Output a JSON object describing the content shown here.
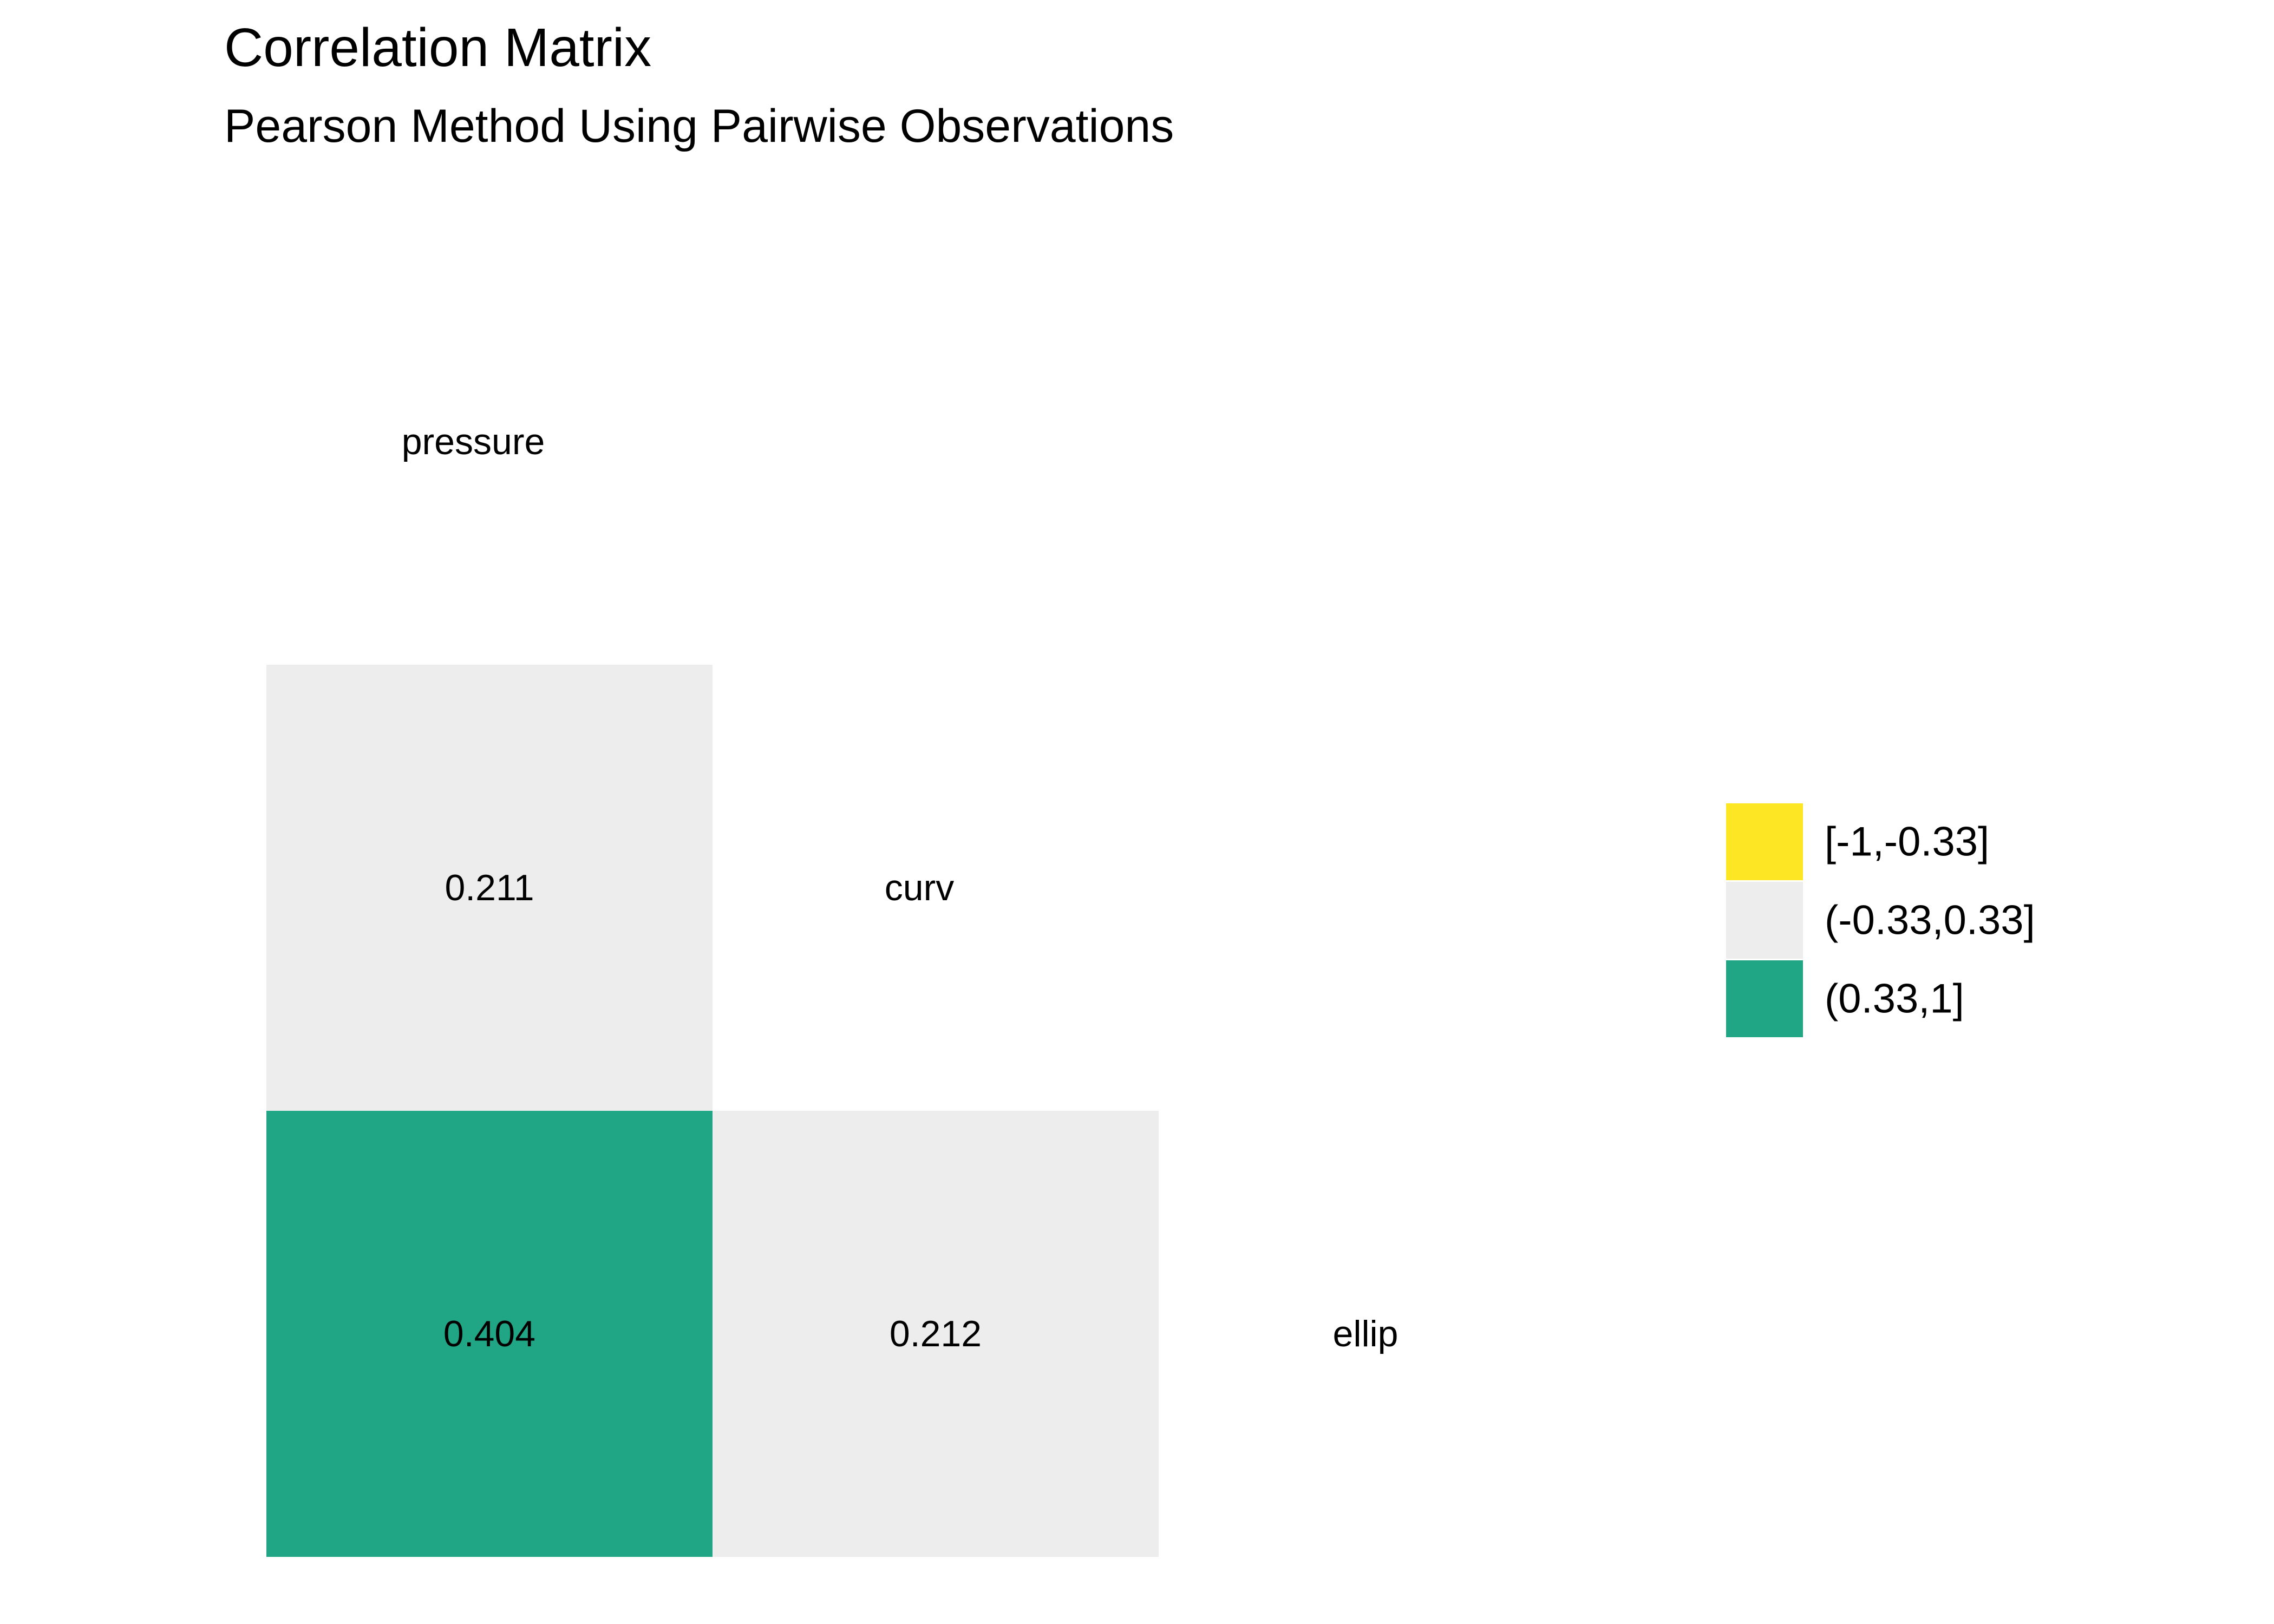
{
  "chart_data": {
    "type": "heatmap",
    "title": "Correlation Matrix",
    "subtitle": "Pearson Method Using Pairwise Observations",
    "variables": [
      "pressure",
      "curv",
      "ellip"
    ],
    "cells": [
      {
        "row": "curv",
        "col": "pressure",
        "value": 0.211,
        "label": "0.211"
      },
      {
        "row": "ellip",
        "col": "curv",
        "value": 0.212,
        "label": "0.212"
      },
      {
        "row": "ellip",
        "col": "pressure",
        "value": 0.404,
        "label": "0.404"
      }
    ],
    "legend": {
      "placement": "right",
      "bins": [
        {
          "label": "[-1,-0.33]",
          "min": -1,
          "max": -0.33,
          "color": "#FDE725"
        },
        {
          "label": "(-0.33,0.33]",
          "min": -0.33,
          "max": 0.33,
          "color": "#EDEDED"
        },
        {
          "label": "(0.33,1]",
          "min": 0.33,
          "max": 1,
          "color": "#21A685"
        }
      ]
    },
    "grid": false
  }
}
